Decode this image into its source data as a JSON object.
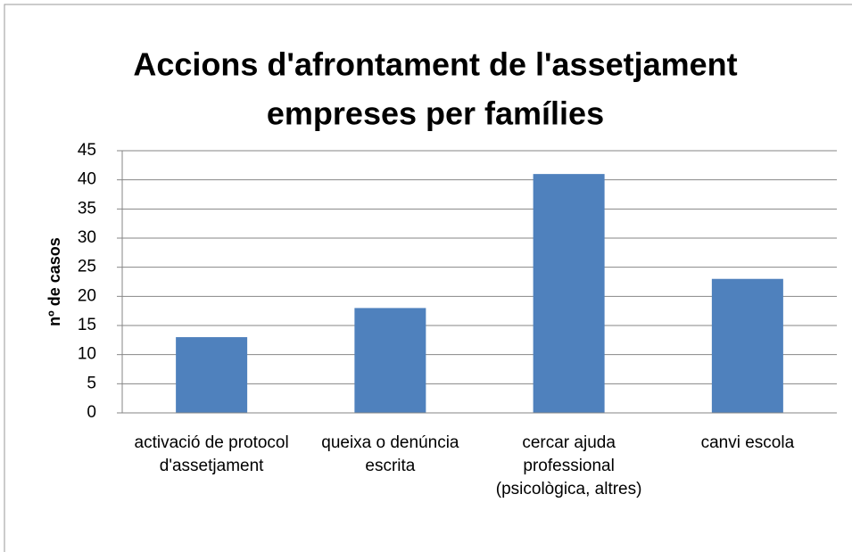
{
  "chart_data": {
    "type": "bar",
    "title": [
      "Accions d'afrontament de l'assetjament",
      "empreses per famílies"
    ],
    "y_label": "nº de casos",
    "categories": [
      "activació de protocol d'assetjament",
      "queixa o denúncia escrita",
      "cercar ajuda professional (psicològica, altres)",
      "canvi escola"
    ],
    "values": [
      13,
      18,
      41,
      23
    ],
    "color": "#4f81bd",
    "ylim": [
      0,
      45
    ],
    "yticks": [
      0,
      5,
      10,
      15,
      20,
      25,
      30,
      35,
      40,
      45
    ],
    "grid": true
  }
}
